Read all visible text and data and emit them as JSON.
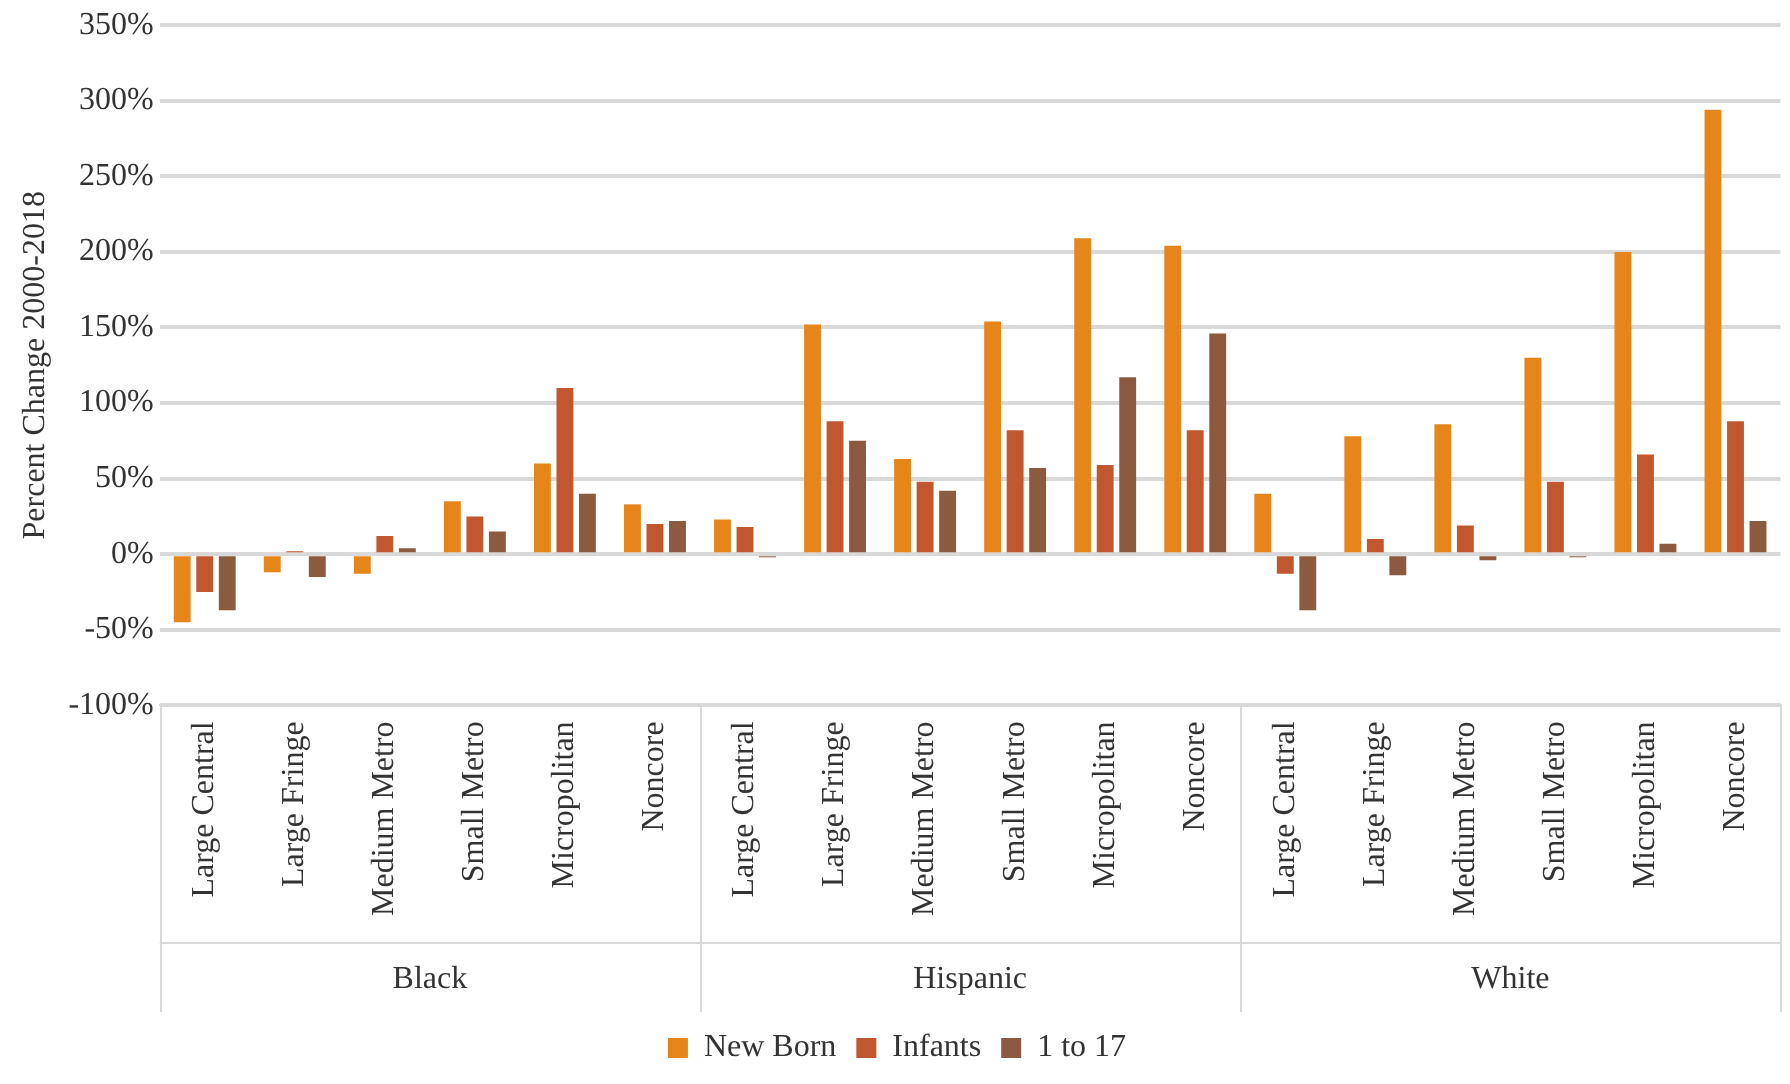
{
  "chart_data": {
    "type": "bar",
    "ylabel": "Percent Change 2000-2018",
    "categories": [
      "Large Central",
      "Large Fringe",
      "Medium Metro",
      "Small Metro",
      "Micropolitan",
      "Noncore",
      "Large Central",
      "Large Fringe",
      "Medium Metro",
      "Small Metro",
      "Micropolitan",
      "Noncore",
      "Large Central",
      "Large Fringe",
      "Medium Metro",
      "Small Metro",
      "Micropolitan",
      "Noncore"
    ],
    "annotations": [
      "Black",
      "Hispanic",
      "White"
    ],
    "series": [
      {
        "name": "New Born",
        "color": "#e6851a",
        "values": [
          -45,
          -12,
          -13,
          35,
          60,
          33,
          23,
          152,
          63,
          154,
          209,
          204,
          40,
          78,
          86,
          130,
          200,
          294
        ]
      },
      {
        "name": "Infants",
        "color": "#c0572e",
        "values": [
          -25,
          2,
          12,
          25,
          110,
          20,
          18,
          88,
          48,
          82,
          59,
          82,
          -13,
          10,
          19,
          48,
          66,
          88
        ]
      },
      {
        "name": "1 to 17",
        "color": "#8b5a3f",
        "values": [
          -37,
          -15,
          4,
          15,
          40,
          22,
          -2,
          75,
          42,
          57,
          117,
          146,
          -37,
          -14,
          -4,
          -2,
          7,
          22
        ]
      }
    ],
    "ylim": [
      -100,
      350
    ],
    "yticks": [
      {
        "value": -100,
        "label": "-100%"
      },
      {
        "value": -50,
        "label": "-50%"
      },
      {
        "value": 0,
        "label": "0%"
      },
      {
        "value": 50,
        "label": "50%"
      },
      {
        "value": 100,
        "label": "100%"
      },
      {
        "value": 150,
        "label": "150%"
      },
      {
        "value": 200,
        "label": "200%"
      },
      {
        "value": 250,
        "label": "250%"
      },
      {
        "value": 300,
        "label": "300%"
      },
      {
        "value": 350,
        "label": "350%"
      }
    ],
    "grid": "y",
    "legend": "bottom"
  }
}
